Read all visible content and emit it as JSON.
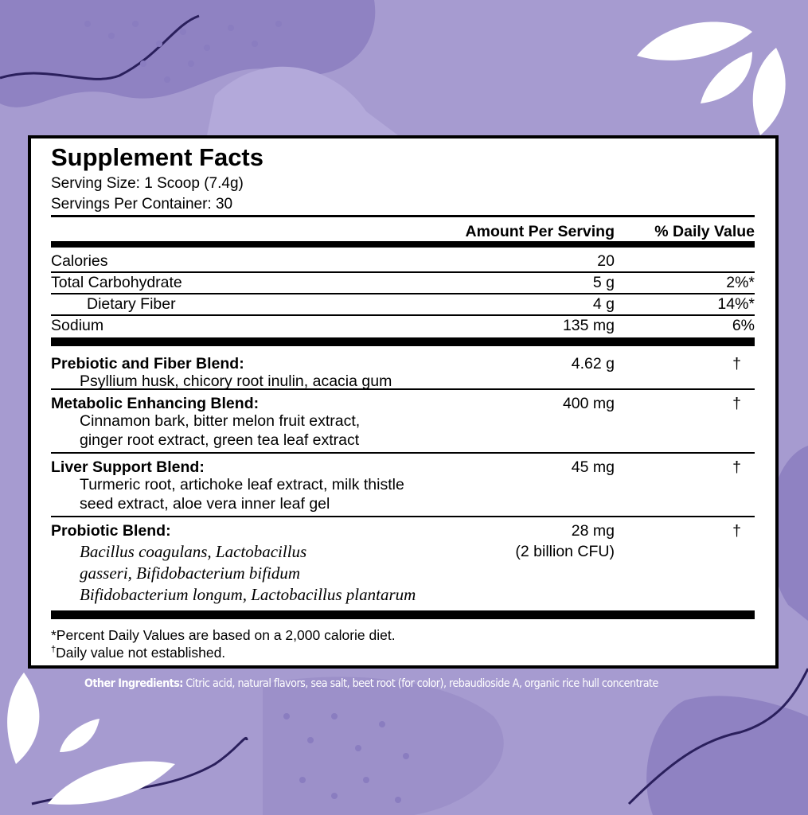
{
  "label": {
    "title": "Supplement Facts",
    "serving_size": "Serving Size: 1 Scoop (7.4g)",
    "servings_per_container": "Servings Per Container: 30",
    "col_amount": "Amount Per Serving",
    "col_dv": "% Daily Value",
    "nutrients": [
      {
        "name": "Calories",
        "amount": "20",
        "dv": ""
      },
      {
        "name": "Total Carbohydrate",
        "amount": "5 g",
        "dv": "2%*"
      },
      {
        "name": "Dietary Fiber",
        "amount": "4 g",
        "dv": "14%*"
      },
      {
        "name": "Sodium",
        "amount": "135 mg",
        "dv": "6%"
      }
    ],
    "blends": [
      {
        "name": "Prebiotic and Fiber Blend:",
        "amount": "4.62 g",
        "dv": "†",
        "ingredients": [
          "Psyllium husk, chicory root inulin, acacia gum"
        ]
      },
      {
        "name": "Metabolic Enhancing Blend:",
        "amount": "400 mg",
        "dv": "†",
        "ingredients": [
          "Cinnamon bark, bitter melon fruit extract,",
          "ginger root extract, green tea leaf extract"
        ]
      },
      {
        "name": "Liver Support Blend:",
        "amount": "45 mg",
        "dv": "†",
        "ingredients": [
          "Turmeric root, artichoke leaf extract, milk thistle",
          "seed extract, aloe vera inner leaf gel"
        ]
      },
      {
        "name": "Probiotic Blend:",
        "amount": "28 mg",
        "amount2": "(2 billion CFU)",
        "dv": "†",
        "ingredients": [
          "Bacillus coagulans, Lactobacillus",
          "gasseri, Bifidobacterium bifidum",
          "Bifidobacterium longum, Lactobacillus plantarum"
        ]
      }
    ],
    "footnote1": "*Percent Daily Values are based on a 2,000 calorie diet.",
    "footnote2_mark": "†",
    "footnote2": "Daily value not established."
  },
  "other_ingredients": {
    "label": "Other Ingredients:",
    "text": " Citric acid, natural flavors, sea salt, beet root (for color), rebaudioside A, organic rice hull concentrate"
  },
  "colors": {
    "background": "#a69bd0",
    "blob": "#8f82c2",
    "leaf": "#ffffff",
    "line": "#2a1f5c"
  }
}
